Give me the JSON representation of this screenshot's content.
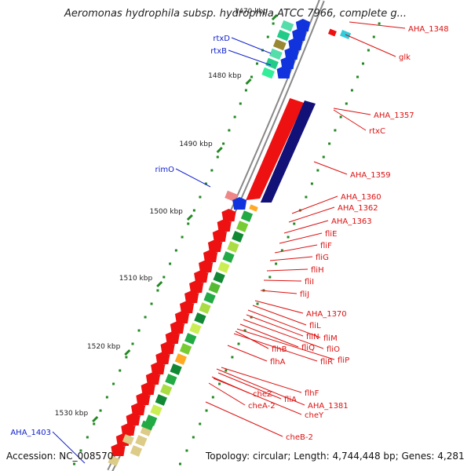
{
  "title": "Aeromonas hydrophila subsp. hydrophila ATCC 7966, complete g...",
  "accession_text": "Accession: NC_008570",
  "summary_text": "Topology: circular; Length: 4,744,448 bp; Genes: 4,281",
  "colors": {
    "forward_gene": "#ee1111",
    "reverse_gene": "#1133dd",
    "label_red": "#dd1111",
    "label_blue": "#1122cc",
    "backbone": "#888888",
    "tick": "#228822",
    "track_green": "#33aa33",
    "track_yellow": "#ccee55",
    "track_navy": "#111177"
  },
  "scale_labels": [
    "1470 kbp",
    "1480 kbp",
    "1490 kbp",
    "1500 kbp",
    "1510 kbp",
    "1520 kbp",
    "1530 kbp"
  ],
  "genes_red": [
    "AHA_1348",
    "glk",
    "AHA_1357",
    "rtxC",
    "AHA_1359",
    "AHA_1360",
    "AHA_1362",
    "AHA_1363",
    "fliE",
    "fliF",
    "fliG",
    "fliH",
    "fliI",
    "fliJ",
    "AHA_1370",
    "fliL",
    "fliM",
    "fliN",
    "fliO",
    "fliQ",
    "fliP",
    "fliR",
    "flhB",
    "flhA",
    "flhF",
    "fliA",
    "AHA_1381",
    "cheZ",
    "cheA-2",
    "cheY",
    "cheB-2"
  ],
  "genes_blue": [
    "rtxD",
    "rtxB",
    "rimO",
    "AHA_1403"
  ]
}
